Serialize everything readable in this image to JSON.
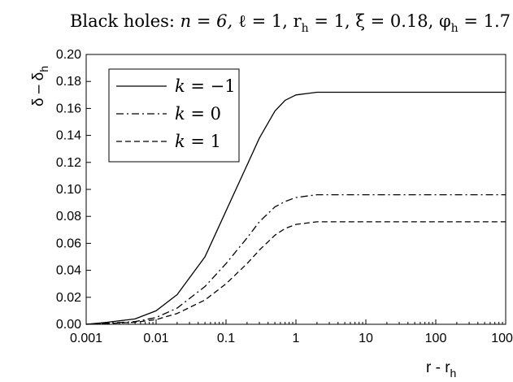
{
  "chart_data": {
    "type": "line",
    "title_parts": {
      "prefix": "Black holes: ",
      "n": "n = 6, ",
      "ell": "ℓ = 1, ",
      "r": "r",
      "r_sub": "h",
      "r_val": " = 1, ",
      "xi": "ξ = 0.18, ",
      "phi": "φ",
      "phi_sub": "h",
      "phi_val": " = 1.7"
    },
    "xlabel": {
      "main": "r - r",
      "sub": "h"
    },
    "ylabel": {
      "a": "δ – δ",
      "sub": "h"
    },
    "x_scale": "log",
    "xlim": [
      0.001,
      1000
    ],
    "ylim": [
      0.0,
      0.2
    ],
    "x_ticks": [
      0.001,
      0.01,
      0.1,
      1,
      10,
      100,
      1000
    ],
    "x_tick_labels": [
      "0.001",
      "0.01",
      "0.1",
      "1",
      "10",
      "100",
      "1000"
    ],
    "y_ticks": [
      0.0,
      0.02,
      0.04,
      0.06,
      0.08,
      0.1,
      0.12,
      0.14,
      0.16,
      0.18,
      0.2
    ],
    "y_tick_labels": [
      "0.00",
      "0.02",
      "0.04",
      "0.06",
      "0.08",
      "0.10",
      "0.12",
      "0.14",
      "0.16",
      "0.18",
      "0.20"
    ],
    "grid": false,
    "legend_position": "top-left",
    "x": [
      0.001,
      0.002,
      0.005,
      0.01,
      0.02,
      0.05,
      0.1,
      0.2,
      0.3,
      0.5,
      0.7,
      1,
      2,
      3,
      5,
      10,
      100,
      1000
    ],
    "series": [
      {
        "name": "k = −1",
        "style": "solid",
        "values": [
          0.0,
          0.0015,
          0.004,
          0.01,
          0.022,
          0.05,
          0.084,
          0.118,
          0.138,
          0.158,
          0.166,
          0.17,
          0.172,
          0.172,
          0.172,
          0.172,
          0.172,
          0.172
        ]
      },
      {
        "name": "k = 0",
        "style": "dashdot",
        "values": [
          0.0,
          0.0008,
          0.002,
          0.005,
          0.012,
          0.028,
          0.045,
          0.064,
          0.076,
          0.087,
          0.091,
          0.094,
          0.096,
          0.096,
          0.096,
          0.096,
          0.096,
          0.096
        ]
      },
      {
        "name": "k = 1",
        "style": "dashed",
        "values": [
          0.0,
          0.0006,
          0.0015,
          0.0035,
          0.008,
          0.018,
          0.03,
          0.045,
          0.055,
          0.066,
          0.071,
          0.074,
          0.076,
          0.076,
          0.076,
          0.076,
          0.076,
          0.076
        ]
      }
    ],
    "colors": {
      "line": "#000000",
      "background": "#ffffff"
    }
  }
}
